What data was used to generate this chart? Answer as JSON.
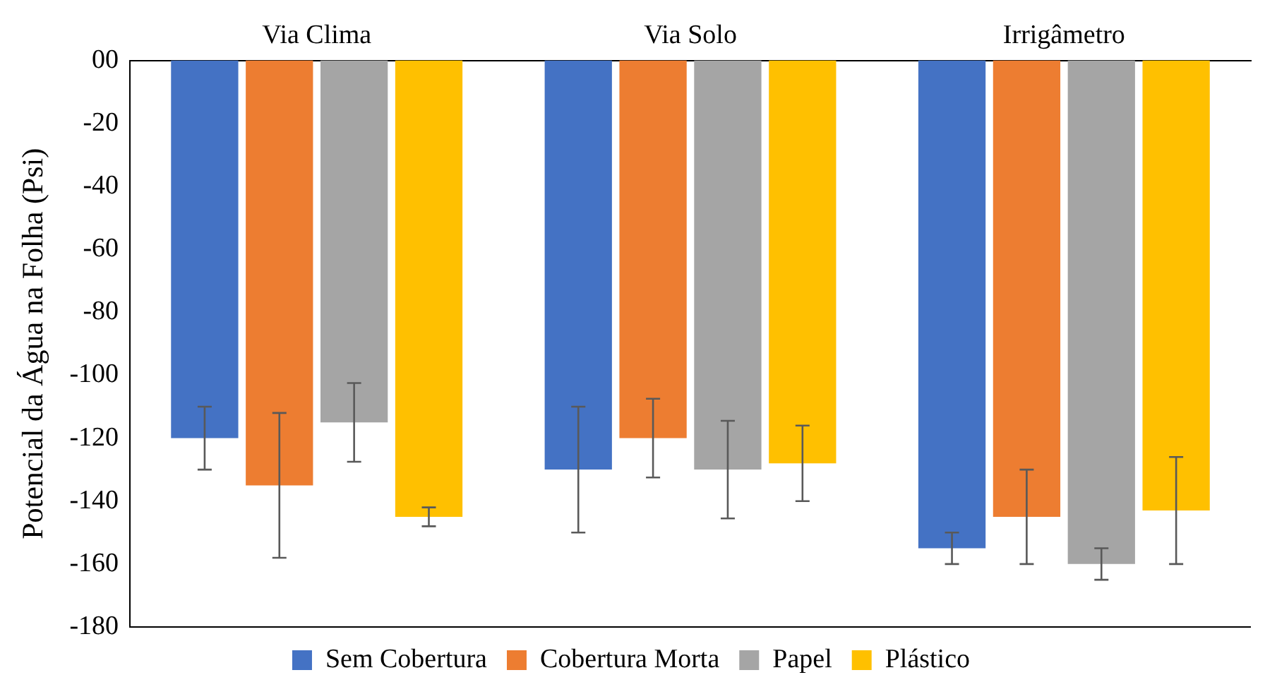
{
  "chart_data": {
    "type": "bar",
    "ylabel": "Potencial da Água na Folha (Psi)",
    "categories": [
      "Via Clima",
      "Via Solo",
      "Irrigâmetro"
    ],
    "series": [
      {
        "name": "Sem Cobertura",
        "color": "#4472c4",
        "values": [
          -120,
          -130,
          -155
        ],
        "errors": [
          10,
          20,
          5
        ]
      },
      {
        "name": "Cobertura Morta",
        "color": "#ed7d31",
        "values": [
          -135,
          -120,
          -145
        ],
        "errors": [
          23,
          12.5,
          15
        ]
      },
      {
        "name": "Papel",
        "color": "#a5a5a5",
        "values": [
          -115,
          -130,
          -160
        ],
        "errors": [
          12.5,
          15.5,
          5
        ]
      },
      {
        "name": "Plástico",
        "color": "#ffc000",
        "values": [
          -145,
          -128,
          -143
        ],
        "errors": [
          3,
          12,
          17
        ]
      }
    ],
    "ylim": [
      -180,
      0
    ],
    "yticks": [
      {
        "value": 0,
        "label": "00"
      },
      -20,
      -40,
      -60,
      -80,
      -100,
      -120,
      -140,
      -160,
      -180
    ],
    "grid": false,
    "legend": "bottom"
  }
}
